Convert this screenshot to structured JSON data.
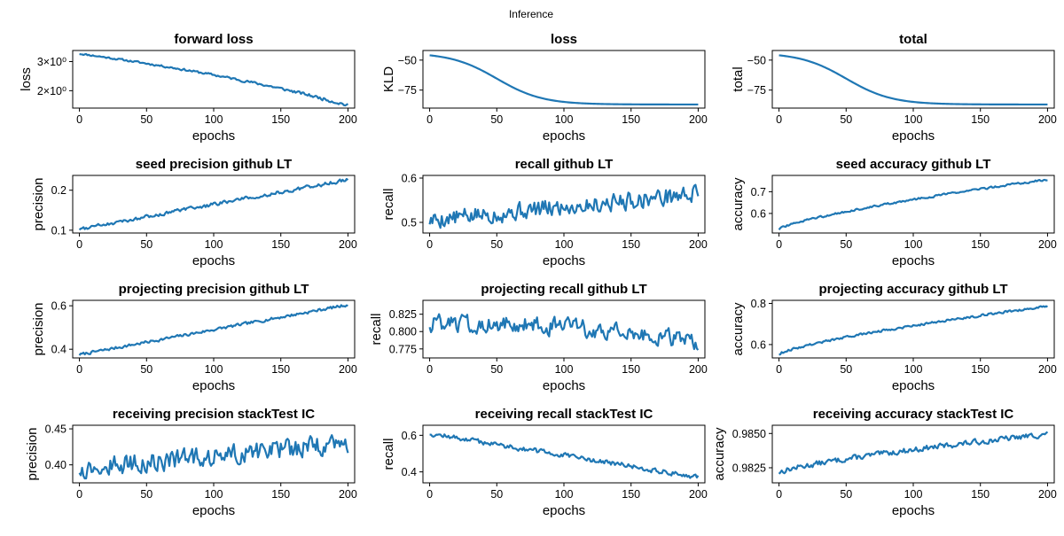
{
  "figure": {
    "suptitle": "Inference",
    "line_color": "#1f77b4",
    "grid": false
  },
  "chart_data": [
    {
      "type": "line",
      "title": "forward loss",
      "xlabel": "epochs",
      "ylabel": "loss",
      "yscale": "log",
      "xlim": [
        -5,
        205
      ],
      "ylim": [
        1.57,
        3.5
      ],
      "xticks": [
        0,
        50,
        100,
        150,
        200
      ],
      "xticklabels": [
        "0",
        "50",
        "100",
        "150",
        "200"
      ],
      "yticks": [
        2,
        3
      ],
      "yticklabels": [
        "2×10⁰",
        "3×10⁰"
      ],
      "series": [
        {
          "gen": {
            "start": 3.35,
            "end": 1.63,
            "shape": "linear",
            "noise": 0.035,
            "seed": 11
          }
        }
      ]
    },
    {
      "type": "line",
      "title": "loss",
      "xlabel": "epochs",
      "ylabel": "KLD",
      "xlim": [
        -5,
        205
      ],
      "ylim": [
        -90,
        -42
      ],
      "xticks": [
        0,
        50,
        100,
        150,
        200
      ],
      "xticklabels": [
        "0",
        "50",
        "100",
        "150",
        "200"
      ],
      "yticks": [
        -50,
        -75
      ],
      "yticklabels": [
        "−50",
        "−75"
      ],
      "series": [
        {
          "gen": {
            "start": -46,
            "end": -87,
            "shape": "sigmoid",
            "mid": 50,
            "width": 17,
            "noise": 0,
            "seed": 2
          }
        }
      ]
    },
    {
      "type": "line",
      "title": "total",
      "xlabel": "epochs",
      "ylabel": "total",
      "xlim": [
        -5,
        205
      ],
      "ylim": [
        -90,
        -42
      ],
      "xticks": [
        0,
        50,
        100,
        150,
        200
      ],
      "xticklabels": [
        "0",
        "50",
        "100",
        "150",
        "200"
      ],
      "yticks": [
        -50,
        -75
      ],
      "yticklabels": [
        "−50",
        "−75"
      ],
      "series": [
        {
          "gen": {
            "start": -46,
            "end": -87,
            "shape": "sigmoid",
            "mid": 50,
            "width": 17,
            "noise": 0,
            "seed": 3
          }
        }
      ]
    },
    {
      "type": "line",
      "title": "seed precision github LT",
      "xlabel": "epochs",
      "ylabel": "precision",
      "xlim": [
        -5,
        205
      ],
      "ylim": [
        0.093,
        0.237
      ],
      "xticks": [
        0,
        50,
        100,
        150,
        200
      ],
      "xticklabels": [
        "0",
        "50",
        "100",
        "150",
        "200"
      ],
      "yticks": [
        0.1,
        0.2
      ],
      "yticklabels": [
        "0.1",
        "0.2"
      ],
      "series": [
        {
          "gen": {
            "start": 0.103,
            "end": 0.226,
            "shape": "linear",
            "noise": 0.004,
            "seed": 4
          }
        }
      ]
    },
    {
      "type": "line",
      "title": "recall github LT",
      "xlabel": "epochs",
      "ylabel": "recall",
      "xlim": [
        -5,
        205
      ],
      "ylim": [
        0.476,
        0.606
      ],
      "xticks": [
        0,
        50,
        100,
        150,
        200
      ],
      "xticklabels": [
        "0",
        "50",
        "100",
        "150",
        "200"
      ],
      "yticks": [
        0.5,
        0.6
      ],
      "yticklabels": [
        "0.5",
        "0.6"
      ],
      "series": [
        {
          "gen": {
            "start": 0.505,
            "end": 0.565,
            "shape": "linear",
            "noise": 0.018,
            "seed": 5
          }
        }
      ]
    },
    {
      "type": "line",
      "title": "seed accuracy github LT",
      "xlabel": "epochs",
      "ylabel": "accuracy",
      "xlim": [
        -5,
        205
      ],
      "ylim": [
        0.51,
        0.775
      ],
      "xticks": [
        0,
        50,
        100,
        150,
        200
      ],
      "xticklabels": [
        "0",
        "50",
        "100",
        "150",
        "200"
      ],
      "yticks": [
        0.6,
        0.7
      ],
      "yticklabels": [
        "0.6",
        "0.7"
      ],
      "series": [
        {
          "gen": {
            "start": 0.527,
            "end": 0.757,
            "shape": "sqrt",
            "noise": 0.004,
            "seed": 6
          }
        }
      ]
    },
    {
      "type": "line",
      "title": "projecting precision github LT",
      "xlabel": "epochs",
      "ylabel": "precision",
      "xlim": [
        -5,
        205
      ],
      "ylim": [
        0.36,
        0.625
      ],
      "xticks": [
        0,
        50,
        100,
        150,
        200
      ],
      "xticklabels": [
        "0",
        "50",
        "100",
        "150",
        "200"
      ],
      "yticks": [
        0.4,
        0.6
      ],
      "yticklabels": [
        "0.4",
        "0.6"
      ],
      "series": [
        {
          "gen": {
            "start": 0.375,
            "end": 0.605,
            "shape": "linear",
            "noise": 0.006,
            "seed": 7
          }
        }
      ]
    },
    {
      "type": "line",
      "title": "projecting recall github LT",
      "xlabel": "epochs",
      "ylabel": "recall",
      "xlim": [
        -5,
        205
      ],
      "ylim": [
        0.762,
        0.845
      ],
      "xticks": [
        0,
        50,
        100,
        150,
        200
      ],
      "xticklabels": [
        "0",
        "50",
        "100",
        "150",
        "200"
      ],
      "yticks": [
        0.775,
        0.8,
        0.825
      ],
      "yticklabels": [
        "0.775",
        "0.800",
        "0.825"
      ],
      "series": [
        {
          "gen": {
            "start": 0.812,
            "end": 0.785,
            "shape": "hump",
            "noise": 0.011,
            "seed": 8
          }
        }
      ]
    },
    {
      "type": "line",
      "title": "projecting accuracy github LT",
      "xlabel": "epochs",
      "ylabel": "accuracy",
      "xlim": [
        -5,
        205
      ],
      "ylim": [
        0.535,
        0.815
      ],
      "xticks": [
        0,
        50,
        100,
        150,
        200
      ],
      "xticklabels": [
        "0",
        "50",
        "100",
        "150",
        "200"
      ],
      "yticks": [
        0.6,
        0.8
      ],
      "yticklabels": [
        "0.6",
        "0.8"
      ],
      "series": [
        {
          "gen": {
            "start": 0.553,
            "end": 0.787,
            "shape": "sqrt",
            "noise": 0.005,
            "seed": 9
          }
        }
      ]
    },
    {
      "type": "line",
      "title": "receiving precision stackTest IC",
      "xlabel": "epochs",
      "ylabel": "precision",
      "xlim": [
        -5,
        205
      ],
      "ylim": [
        0.375,
        0.455
      ],
      "xticks": [
        0,
        50,
        100,
        150,
        200
      ],
      "xticklabels": [
        "0",
        "50",
        "100",
        "150",
        "200"
      ],
      "yticks": [
        0.4,
        0.45
      ],
      "yticklabels": [
        "0.40",
        "0.45"
      ],
      "series": [
        {
          "gen": {
            "start": 0.395,
            "end": 0.43,
            "shape": "linear",
            "noise": 0.012,
            "seed": 10
          }
        }
      ]
    },
    {
      "type": "line",
      "title": "receiving recall stackTest IC",
      "xlabel": "epochs",
      "ylabel": "recall",
      "xlim": [
        -5,
        205
      ],
      "ylim": [
        0.34,
        0.655
      ],
      "xticks": [
        0,
        50,
        100,
        150,
        200
      ],
      "xticklabels": [
        "0",
        "50",
        "100",
        "150",
        "200"
      ],
      "yticks": [
        0.4,
        0.6
      ],
      "yticklabels": [
        "0.4",
        "0.6"
      ],
      "series": [
        {
          "gen": {
            "start": 0.61,
            "end": 0.37,
            "shape": "linear",
            "noise": 0.012,
            "seed": 12
          }
        }
      ]
    },
    {
      "type": "line",
      "title": "receiving accuracy stackTest IC",
      "xlabel": "epochs",
      "ylabel": "accuracy",
      "xlim": [
        -5,
        205
      ],
      "ylim": [
        0.9814,
        0.9856
      ],
      "xticks": [
        0,
        50,
        100,
        150,
        200
      ],
      "xticklabels": [
        "0",
        "50",
        "100",
        "150",
        "200"
      ],
      "yticks": [
        0.9825,
        0.985
      ],
      "yticklabels": [
        "0.9825",
        "0.9850"
      ],
      "series": [
        {
          "gen": {
            "start": 0.98215,
            "end": 0.98495,
            "shape": "sqrt",
            "noise": 0.00018,
            "seed": 13
          }
        }
      ]
    }
  ]
}
